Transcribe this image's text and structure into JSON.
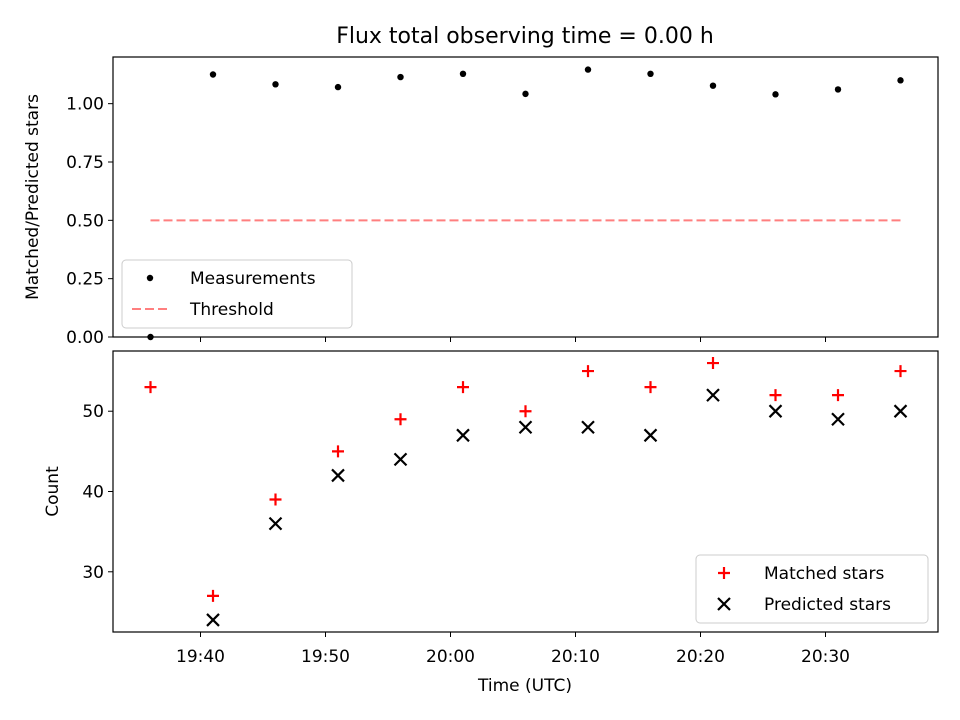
{
  "figure": {
    "title": "Flux total observing time = 0.00 h",
    "xlabel": "Time (UTC)"
  },
  "chart_data": [
    {
      "type": "scatter",
      "panel": "top",
      "ylabel": "Matched/Predicted stars",
      "ylim": [
        0,
        1.2
      ],
      "yticks": [
        0.0,
        0.25,
        0.5,
        0.75,
        1.0
      ],
      "ytick_labels": [
        "0.00",
        "0.25",
        "0.50",
        "0.75",
        "1.00"
      ],
      "legend_position": "lower-left",
      "series": [
        {
          "name": "Measurements",
          "color": "#000000",
          "marker": "dot",
          "x": [
            "19:36",
            "19:41",
            "19:46",
            "19:51",
            "19:56",
            "20:01",
            "20:06",
            "20:11",
            "20:16",
            "20:21",
            "20:26",
            "20:31",
            "20:36"
          ],
          "y": [
            0.0,
            1.125,
            1.083,
            1.071,
            1.114,
            1.128,
            1.042,
            1.146,
            1.128,
            1.077,
            1.04,
            1.061,
            1.1
          ]
        },
        {
          "name": "Threshold",
          "color": "#ff7f7f",
          "style": "dashed-line",
          "x": [
            "19:36",
            "20:36"
          ],
          "y": [
            0.5,
            0.5
          ]
        }
      ]
    },
    {
      "type": "scatter",
      "panel": "bottom",
      "ylabel": "Count",
      "ylim": [
        22.5,
        57.5
      ],
      "yticks": [
        30,
        40,
        50
      ],
      "ytick_labels": [
        "30",
        "40",
        "50"
      ],
      "legend_position": "lower-right",
      "series": [
        {
          "name": "Matched stars",
          "color": "#ff0000",
          "marker": "plus",
          "x": [
            "19:36",
            "19:41",
            "19:46",
            "19:51",
            "19:56",
            "20:01",
            "20:06",
            "20:11",
            "20:16",
            "20:21",
            "20:26",
            "20:31",
            "20:36"
          ],
          "y": [
            53,
            27,
            39,
            45,
            49,
            53,
            50,
            55,
            53,
            56,
            52,
            52,
            55
          ]
        },
        {
          "name": "Predicted stars",
          "color": "#000000",
          "marker": "x",
          "x": [
            "19:36",
            "19:41",
            "19:46",
            "19:51",
            "19:56",
            "20:01",
            "20:06",
            "20:11",
            "20:16",
            "20:21",
            "20:26",
            "20:31",
            "20:36"
          ],
          "y": [
            null,
            24,
            36,
            42,
            44,
            47,
            48,
            48,
            47,
            52,
            50,
            49,
            50
          ]
        }
      ]
    }
  ],
  "x_axis": {
    "range": [
      "19:33",
      "20:39"
    ],
    "ticks": [
      "19:40",
      "19:50",
      "20:00",
      "20:10",
      "20:20",
      "20:30"
    ],
    "tick_labels": [
      "19:40",
      "19:50",
      "20:00",
      "20:10",
      "20:20",
      "20:30"
    ]
  }
}
